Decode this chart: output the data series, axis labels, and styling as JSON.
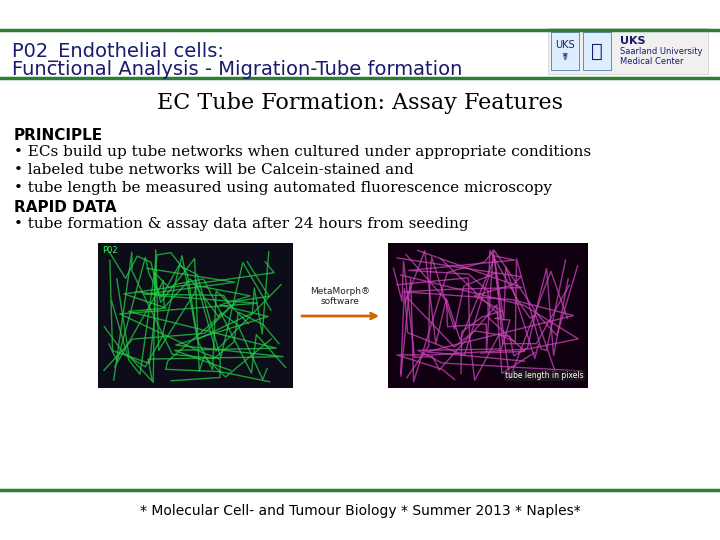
{
  "title_line1": "P02_Endothelial cells:",
  "title_line2": "Functional Analysis - Migration-Tube formation",
  "title_color": "#1a1a6e",
  "title_fontsize": 14,
  "header_line_color": "#2e7d32",
  "slide_title": "EC Tube Formation: Assay Features",
  "slide_title_fontsize": 16,
  "section1_header": "PRINCIPLE",
  "section1_bullets": [
    "• ECs build up tube networks when cultured under appropriate conditions",
    "• labeled tube networks will be Calcein-stained and",
    "• tube length be measured using automated fluorescence microscopy"
  ],
  "section2_header": "RAPID DATA",
  "section2_bullets": [
    "• tube formation & assay data after 24 hours from seeding"
  ],
  "footer_text": "* Molecular Cell- and Tumour Biology * Summer 2013 * Naples*",
  "footer_fontsize": 10,
  "body_fontsize": 11,
  "section_header_fontsize": 11,
  "bg_color": "#ffffff",
  "text_color": "#000000",
  "title_color_dark": "#1a1a6e",
  "image1_label": "P02",
  "image2_label": "tube length in pixels",
  "arrow_label": "MetaMorph®\nsoftware"
}
